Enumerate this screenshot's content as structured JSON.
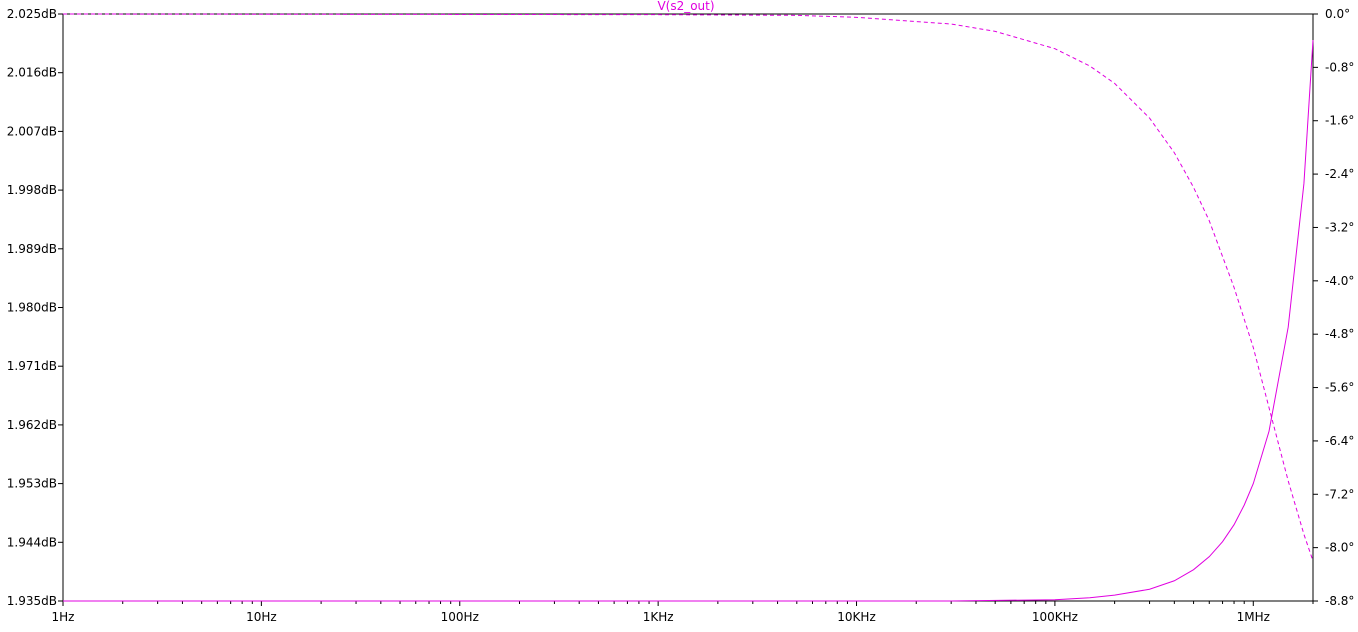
{
  "chart_data": {
    "type": "line",
    "title": "V(s2_out)",
    "xlabel": "",
    "x_scale": "log",
    "xlim": [
      1,
      2000000
    ],
    "x_ticks": [
      {
        "value": 1,
        "label": "1Hz"
      },
      {
        "value": 10,
        "label": "10Hz"
      },
      {
        "value": 100,
        "label": "100Hz"
      },
      {
        "value": 1000,
        "label": "1KHz"
      },
      {
        "value": 10000,
        "label": "10KHz"
      },
      {
        "value": 100000,
        "label": "100KHz"
      },
      {
        "value": 1000000,
        "label": "1MHz"
      }
    ],
    "y_left": {
      "unit": "dB",
      "ylim": [
        1.935,
        2.025
      ],
      "ticks": [
        {
          "value": 2.025,
          "label": "2.025dB"
        },
        {
          "value": 2.016,
          "label": "2.016dB"
        },
        {
          "value": 2.007,
          "label": "2.007dB"
        },
        {
          "value": 1.998,
          "label": "1.998dB"
        },
        {
          "value": 1.989,
          "label": "1.989dB"
        },
        {
          "value": 1.98,
          "label": "1.980dB"
        },
        {
          "value": 1.971,
          "label": "1.971dB"
        },
        {
          "value": 1.962,
          "label": "1.962dB"
        },
        {
          "value": 1.953,
          "label": "1.953dB"
        },
        {
          "value": 1.944,
          "label": "1.944dB"
        },
        {
          "value": 1.935,
          "label": "1.935dB"
        }
      ]
    },
    "y_right": {
      "unit": "°",
      "ylim": [
        -8.8,
        0.0
      ],
      "ticks": [
        {
          "value": 0.0,
          "label": "0.0°"
        },
        {
          "value": -0.8,
          "label": "-0.8°"
        },
        {
          "value": -1.6,
          "label": "-1.6°"
        },
        {
          "value": -2.4,
          "label": "-2.4°"
        },
        {
          "value": -3.2,
          "label": "-3.2°"
        },
        {
          "value": -4.0,
          "label": "-4.0°"
        },
        {
          "value": -4.8,
          "label": "-4.8°"
        },
        {
          "value": -5.6,
          "label": "-5.6°"
        },
        {
          "value": -6.4,
          "label": "-6.4°"
        },
        {
          "value": -7.2,
          "label": "-7.2°"
        },
        {
          "value": -8.0,
          "label": "-8.0°"
        },
        {
          "value": -8.8,
          "label": "-8.8°"
        }
      ]
    },
    "grid": false,
    "series": [
      {
        "name": "V(s2_out)",
        "color": "#e000e0",
        "axis": "left",
        "style": "solid",
        "x": [
          1,
          1000,
          30000,
          100000,
          150000,
          200000,
          300000,
          400000,
          500000,
          600000,
          700000,
          800000,
          900000,
          1000000,
          1200000,
          1500000,
          1800000,
          2000000
        ],
        "y": [
          1.935,
          1.935,
          1.935,
          1.9352,
          1.9355,
          1.9359,
          1.9368,
          1.9381,
          1.9398,
          1.9418,
          1.9441,
          1.9467,
          1.9497,
          1.953,
          1.961,
          1.977,
          1.999,
          2.021
        ]
      },
      {
        "name": "V(s2_out)",
        "color": "#e000e0",
        "axis": "right",
        "style": "dashed",
        "x": [
          1,
          1000,
          5000,
          10000,
          30000,
          50000,
          100000,
          150000,
          200000,
          300000,
          400000,
          500000,
          600000,
          800000,
          1000000,
          1200000,
          1500000,
          1800000,
          2000000
        ],
        "y": [
          0.0,
          -0.01,
          -0.02,
          -0.05,
          -0.15,
          -0.26,
          -0.52,
          -0.78,
          -1.04,
          -1.56,
          -2.08,
          -2.6,
          -3.1,
          -4.1,
          -5.0,
          -5.9,
          -7.0,
          -7.8,
          -8.2
        ]
      }
    ]
  }
}
